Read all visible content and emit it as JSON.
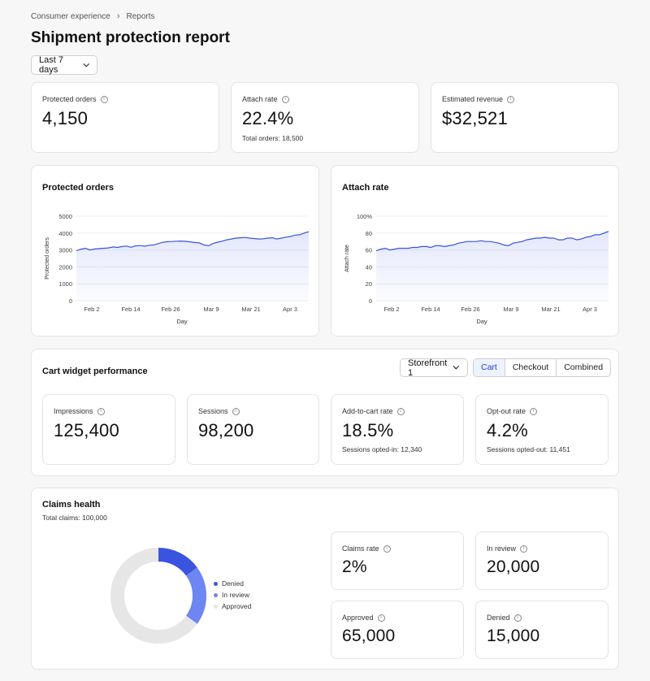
{
  "breadcrumb": {
    "parent": "Consumer experience",
    "current": "Reports"
  },
  "page_title": "Shipment protection report",
  "date_filter": "Last 7 days",
  "summary": [
    {
      "label": "Protected orders",
      "value": "4,150",
      "sub": ""
    },
    {
      "label": "Attach rate",
      "value": "22.4%",
      "sub": "Total orders: 18,500"
    },
    {
      "label": "Estimated revenue",
      "value": "$32,521",
      "sub": ""
    }
  ],
  "charts": {
    "protected_orders": {
      "title": "Protected orders"
    },
    "attach_rate": {
      "title": "Attach rate"
    }
  },
  "chart_data": [
    {
      "type": "area",
      "title": "Protected orders",
      "xlabel": "Day",
      "ylabel": "Protected orders",
      "ylim": [
        0,
        5000
      ],
      "yticks": [
        "5000",
        "4000",
        "3000",
        "2000",
        "1000",
        "0"
      ],
      "xticks": [
        "Feb 2",
        "Feb 14",
        "Feb 26",
        "Mar 9",
        "Mar 21",
        "Apr 3"
      ],
      "grid": "horizontal",
      "color": "#3a54e0",
      "series": [
        {
          "values": [
            2950,
            3050,
            3100,
            3000,
            3060,
            3080,
            3100,
            3120,
            3180,
            3150,
            3200,
            3230,
            3160,
            3240,
            3260,
            3220,
            3280,
            3300,
            3380,
            3450,
            3490,
            3500,
            3520,
            3530,
            3510,
            3480,
            3440,
            3420,
            3300,
            3250,
            3380,
            3460,
            3520,
            3600,
            3650,
            3700,
            3720,
            3740,
            3700,
            3680,
            3650,
            3660,
            3700,
            3720,
            3650,
            3700,
            3760,
            3800,
            3880,
            3900,
            4000,
            4080
          ]
        }
      ]
    },
    {
      "type": "area",
      "title": "Attach rate",
      "xlabel": "Day",
      "ylabel": "Attach rate",
      "ylim": [
        0,
        100
      ],
      "yticks": [
        "100%",
        "80",
        "60",
        "40",
        "20",
        "0"
      ],
      "xticks": [
        "Feb 2",
        "Feb 14",
        "Feb 26",
        "Mar 9",
        "Mar 21",
        "Apr 3"
      ],
      "grid": "horizontal",
      "color": "#3a54e0",
      "series": [
        {
          "values": [
            59,
            61,
            62,
            60,
            61,
            62,
            62,
            62,
            63,
            63,
            64,
            64,
            63,
            65,
            65,
            64,
            65,
            66,
            68,
            69,
            70,
            70,
            70,
            71,
            70,
            70,
            69,
            68,
            66,
            65,
            68,
            69,
            70,
            72,
            73,
            74,
            74,
            75,
            74,
            74,
            72,
            72,
            74,
            74,
            72,
            73,
            75,
            76,
            78,
            78,
            80,
            82
          ]
        }
      ]
    }
  ],
  "cart_widget": {
    "title": "Cart widget performance",
    "storefront": "Storefront 1",
    "tabs": [
      "Cart",
      "Checkout",
      "Combined"
    ],
    "metrics": [
      {
        "label": "Impressions",
        "value": "125,400",
        "sub": ""
      },
      {
        "label": "Sessions",
        "value": "98,200",
        "sub": ""
      },
      {
        "label": "Add-to-cart rate",
        "value": "18.5%",
        "sub": "Sessions opted-in: 12,340"
      },
      {
        "label": "Opt-out rate",
        "value": "4.2%",
        "sub": "Sessions opted-out: 11,451"
      }
    ]
  },
  "claims": {
    "title": "Claims health",
    "total": "Total claims: 100,000",
    "legend": [
      {
        "label": "Denied",
        "color": "#3a54e0"
      },
      {
        "label": "In review",
        "color": "#6d86f2"
      },
      {
        "label": "Approved",
        "color": "#e6e6e6"
      }
    ],
    "donut": {
      "denied": 15000,
      "in_review": 20000,
      "approved": 65000
    },
    "metrics": [
      {
        "label": "Claims rate",
        "value": "2%"
      },
      {
        "label": "In review",
        "value": "20,000"
      },
      {
        "label": "Approved",
        "value": "65,000"
      },
      {
        "label": "Denied",
        "value": "15,000"
      }
    ]
  }
}
